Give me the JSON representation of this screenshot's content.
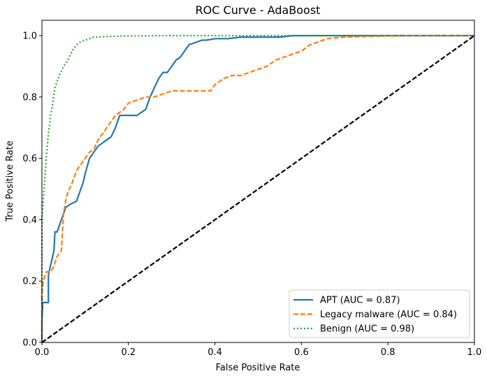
{
  "chart_data": {
    "type": "line",
    "title": "ROC Curve - AdaBoost",
    "xlabel": "False Positive Rate",
    "ylabel": "True Positive Rate",
    "xlim": [
      0.0,
      1.0
    ],
    "ylim": [
      0.0,
      1.05
    ],
    "xticks": [
      "0.0",
      "0.2",
      "0.4",
      "0.6",
      "0.8",
      "1.0"
    ],
    "yticks": [
      "0.0",
      "0.2",
      "0.4",
      "0.6",
      "0.8",
      "1.0"
    ],
    "grid": false,
    "legend_position": "lower-right",
    "series": [
      {
        "name": "APT (AUC = 0.87)",
        "color": "#1f77b4",
        "linestyle": "solid",
        "x": [
          0.0,
          0.0,
          0.002,
          0.015,
          0.015,
          0.028,
          0.03,
          0.035,
          0.05,
          0.055,
          0.065,
          0.08,
          0.09,
          0.095,
          0.1,
          0.11,
          0.12,
          0.13,
          0.14,
          0.15,
          0.16,
          0.17,
          0.175,
          0.18,
          0.2,
          0.22,
          0.24,
          0.25,
          0.26,
          0.27,
          0.28,
          0.29,
          0.3,
          0.31,
          0.32,
          0.33,
          0.34,
          0.35,
          0.36,
          0.37,
          0.38,
          0.4,
          0.43,
          0.46,
          0.47,
          0.5,
          0.55,
          0.58,
          0.62,
          0.7,
          0.8,
          0.9,
          1.0
        ],
        "y": [
          0.0,
          0.07,
          0.13,
          0.13,
          0.22,
          0.3,
          0.36,
          0.36,
          0.42,
          0.44,
          0.45,
          0.46,
          0.5,
          0.52,
          0.55,
          0.6,
          0.62,
          0.64,
          0.65,
          0.66,
          0.67,
          0.7,
          0.72,
          0.74,
          0.74,
          0.74,
          0.76,
          0.8,
          0.83,
          0.86,
          0.88,
          0.88,
          0.9,
          0.92,
          0.93,
          0.95,
          0.97,
          0.975,
          0.98,
          0.985,
          0.985,
          0.99,
          0.99,
          0.995,
          0.995,
          0.995,
          0.995,
          1.0,
          1.0,
          1.0,
          1.0,
          1.0,
          1.0
        ]
      },
      {
        "name": "Legacy malware (AUC = 0.84)",
        "color": "#ff7f0e",
        "linestyle": "dashed",
        "x": [
          0.0,
          0.0,
          0.003,
          0.01,
          0.02,
          0.025,
          0.035,
          0.045,
          0.05,
          0.055,
          0.06,
          0.07,
          0.08,
          0.09,
          0.1,
          0.11,
          0.12,
          0.13,
          0.14,
          0.15,
          0.16,
          0.17,
          0.18,
          0.19,
          0.2,
          0.22,
          0.24,
          0.26,
          0.28,
          0.3,
          0.32,
          0.36,
          0.38,
          0.39,
          0.4,
          0.42,
          0.44,
          0.46,
          0.48,
          0.5,
          0.52,
          0.54,
          0.56,
          0.58,
          0.6,
          0.62,
          0.64,
          0.66,
          0.7,
          0.8,
          0.9,
          1.0
        ],
        "y": [
          0.0,
          0.16,
          0.2,
          0.23,
          0.23,
          0.24,
          0.28,
          0.3,
          0.42,
          0.46,
          0.49,
          0.52,
          0.56,
          0.58,
          0.6,
          0.62,
          0.63,
          0.66,
          0.68,
          0.7,
          0.72,
          0.74,
          0.75,
          0.76,
          0.78,
          0.79,
          0.8,
          0.8,
          0.81,
          0.82,
          0.82,
          0.82,
          0.82,
          0.82,
          0.84,
          0.86,
          0.87,
          0.87,
          0.88,
          0.89,
          0.9,
          0.92,
          0.93,
          0.94,
          0.95,
          0.97,
          0.98,
          0.99,
          0.995,
          0.999,
          1.0,
          1.0
        ]
      },
      {
        "name": "Benign (AUC = 0.98)",
        "color": "#2ca02c",
        "linestyle": "dotted",
        "x": [
          0.0,
          0.0,
          0.005,
          0.01,
          0.015,
          0.02,
          0.025,
          0.03,
          0.035,
          0.04,
          0.05,
          0.06,
          0.07,
          0.08,
          0.09,
          0.1,
          0.11,
          0.12,
          0.15,
          0.2,
          0.3,
          0.5,
          0.7,
          1.0
        ],
        "y": [
          0.0,
          0.4,
          0.5,
          0.6,
          0.68,
          0.74,
          0.78,
          0.83,
          0.85,
          0.87,
          0.9,
          0.92,
          0.95,
          0.97,
          0.98,
          0.985,
          0.99,
          0.995,
          0.997,
          0.999,
          1.0,
          1.0,
          1.0,
          1.0
        ]
      },
      {
        "name": "",
        "color": "#000000",
        "linestyle": "dashed",
        "x": [
          0.0,
          1.0
        ],
        "y": [
          0.0,
          1.0
        ]
      }
    ]
  }
}
